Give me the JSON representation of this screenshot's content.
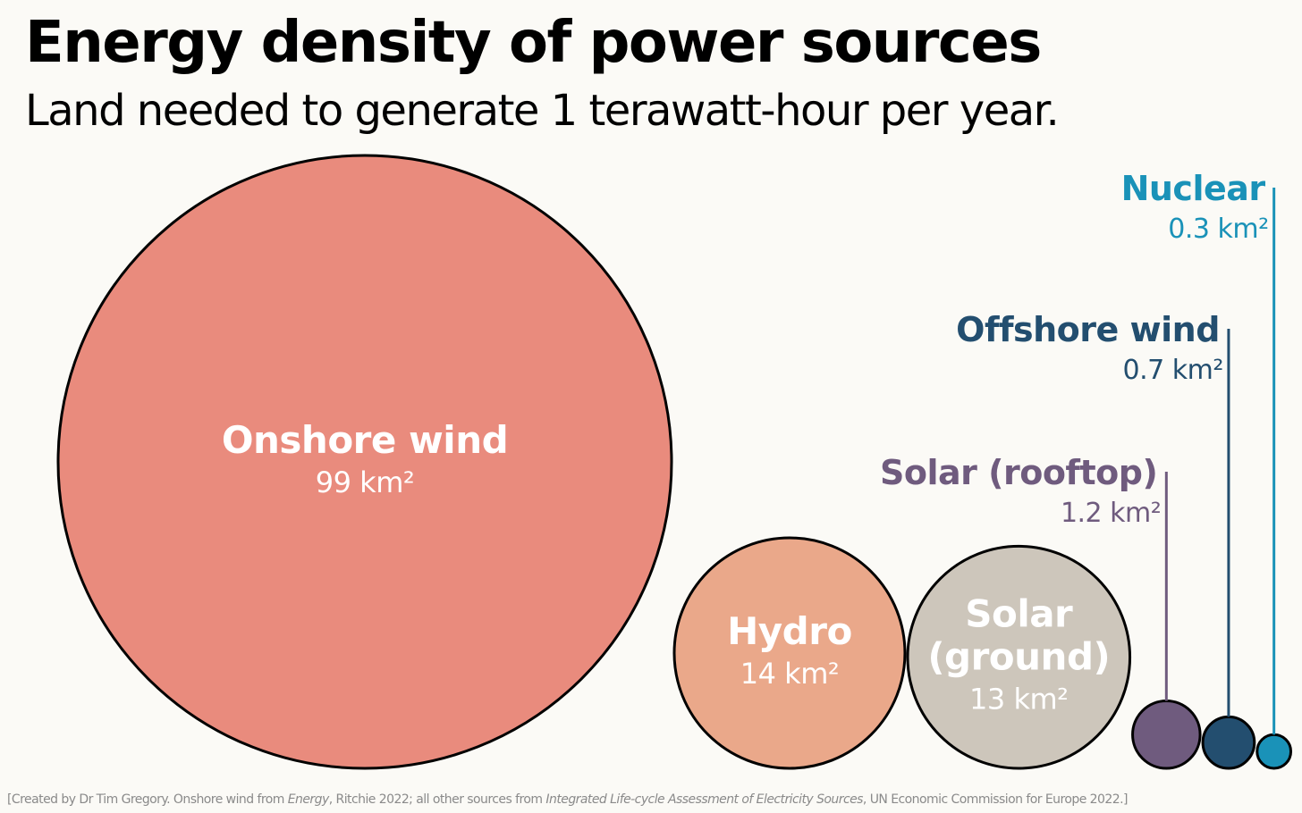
{
  "chart_data": {
    "type": "bubble",
    "title": "Energy density of power sources",
    "subtitle": "Land needed to generate 1 terawatt-hour per year.",
    "unit": "km²",
    "series": [
      {
        "name": "Onshore wind",
        "value": 99,
        "value_label": "99 km²",
        "color": "#e98b7d",
        "label_color": "#ffffff",
        "label_position": "inside"
      },
      {
        "name": "Hydro",
        "value": 14,
        "value_label": "14 km²",
        "color": "#eaa88a",
        "label_color": "#ffffff",
        "label_position": "inside"
      },
      {
        "name": "Solar (ground)",
        "name_lines": [
          "Solar",
          "(ground)"
        ],
        "value": 13,
        "value_label": "13 km²",
        "color": "#cdc6bb",
        "label_color": "#ffffff",
        "label_position": "inside"
      },
      {
        "name": "Solar (rooftop)",
        "value": 1.2,
        "value_label": "1.2 km²",
        "color": "#6f5b7e",
        "label_color": "#6f5b7e",
        "label_position": "callout"
      },
      {
        "name": "Offshore wind",
        "value": 0.7,
        "value_label": "0.7 km²",
        "color": "#234e6f",
        "label_color": "#234e6f",
        "label_position": "callout"
      },
      {
        "name": "Nuclear",
        "value": 0.3,
        "value_label": "0.3 km²",
        "color": "#1a92b8",
        "label_color": "#1a92b8",
        "label_position": "callout"
      }
    ]
  },
  "credit": {
    "prefix": "[Created by Dr Tim Gregory. Onshore wind from ",
    "source1_title": "Energy",
    "middle": ", Ritchie 2022; all other sources from ",
    "source2_title": "Integrated Life-cycle Assessment of Electricity Sources",
    "suffix": ", UN Economic Commission for Europe 2022.]"
  }
}
